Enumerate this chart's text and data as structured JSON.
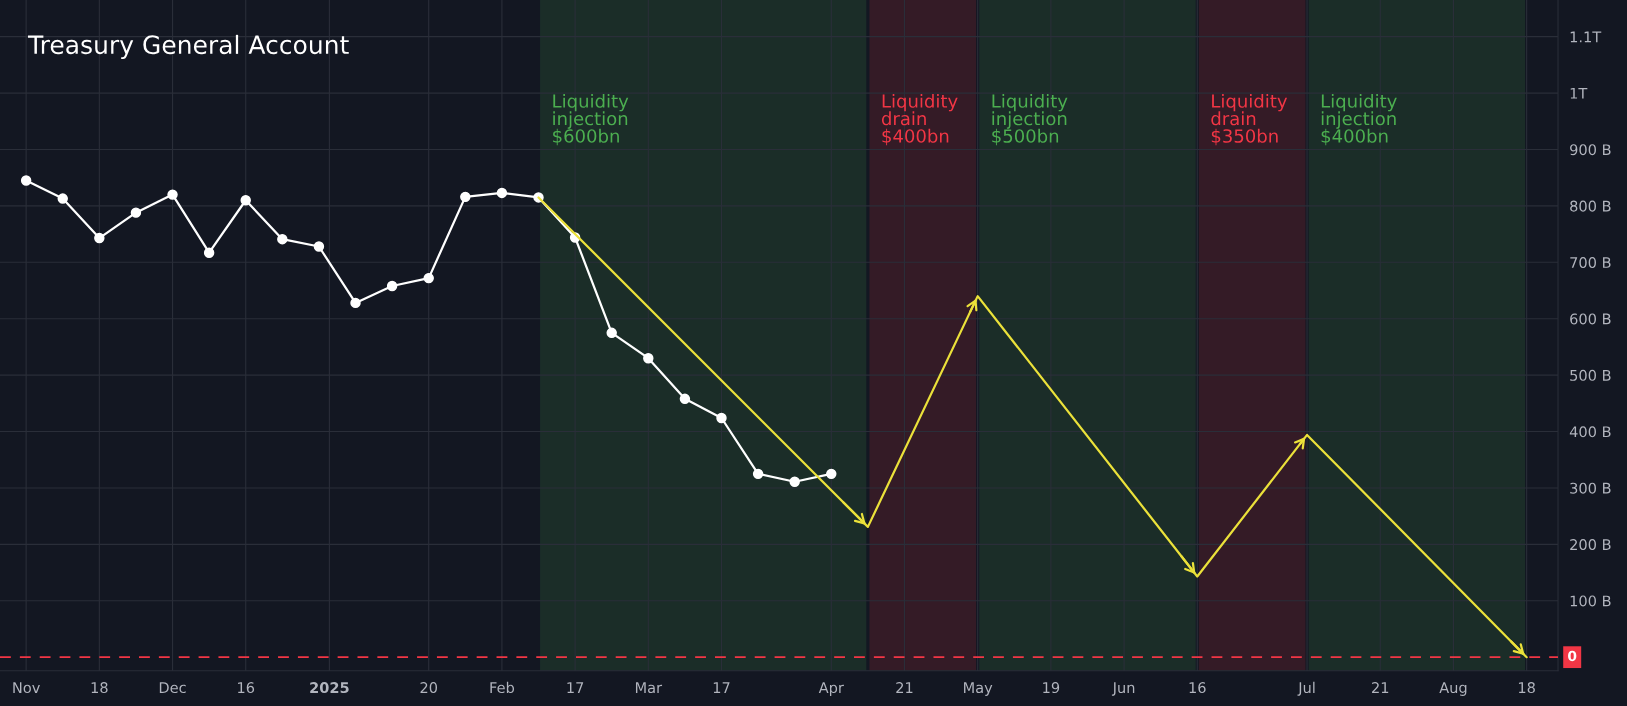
{
  "chart_data": {
    "type": "line",
    "title": "Treasury General Account",
    "series": [
      {
        "color": "#ffffff",
        "marker": "circle",
        "x": [
          "2024-11-04",
          "2024-11-11",
          "2024-11-18",
          "2024-11-25",
          "2024-12-02",
          "2024-12-09",
          "2024-12-16",
          "2024-12-23",
          "2024-12-30",
          "2025-01-06",
          "2025-01-13",
          "2025-01-20",
          "2025-01-27",
          "2025-02-03",
          "2025-02-10",
          "2025-02-17",
          "2025-02-24",
          "2025-03-03",
          "2025-03-10",
          "2025-03-17",
          "2025-03-24",
          "2025-03-31",
          "2025-04-07"
        ],
        "values": [
          845000000000.0,
          813000000000.0,
          743000000000.0,
          788000000000.0,
          820000000000.0,
          717000000000.0,
          810000000000.0,
          741000000000.0,
          728000000000.0,
          628000000000.0,
          658000000000.0,
          672000000000.0,
          816000000000.0,
          823000000000.0,
          815000000000.0,
          744000000000.0,
          575000000000.0,
          530000000000.0,
          458000000000.0,
          424000000000.0,
          325000000000.0,
          311000000000.0,
          325000000000.0
        ]
      },
      {
        "color": "#ebe13a",
        "marker": "none",
        "x": [
          "2025-02-10",
          "2025-04-14",
          "2025-05-05",
          "2025-06-16",
          "2025-07-07",
          "2025-08-18"
        ],
        "values": [
          815000000000.0,
          231000000000.0,
          640000000000.0,
          143000000000.0,
          394000000000.0,
          0
        ]
      }
    ],
    "xlim": [
      "2024-10-30",
      "2025-08-24"
    ],
    "xticks": [
      {
        "value": "2024-11-04",
        "label": "Nov"
      },
      {
        "value": "2024-11-18",
        "label": "18"
      },
      {
        "value": "2024-12-02",
        "label": "Dec"
      },
      {
        "value": "2024-12-16",
        "label": "16"
      },
      {
        "value": "2025-01-01",
        "label": "2025"
      },
      {
        "value": "2025-01-20",
        "label": "20"
      },
      {
        "value": "2025-02-03",
        "label": "Feb"
      },
      {
        "value": "2025-02-17",
        "label": "17"
      },
      {
        "value": "2025-03-03",
        "label": "Mar"
      },
      {
        "value": "2025-03-17",
        "label": "17"
      },
      {
        "value": "2025-04-07",
        "label": "Apr"
      },
      {
        "value": "2025-04-21",
        "label": "21"
      },
      {
        "value": "2025-05-05",
        "label": "May"
      },
      {
        "value": "2025-05-19",
        "label": "19"
      },
      {
        "value": "2025-06-02",
        "label": "Jun"
      },
      {
        "value": "2025-06-16",
        "label": "16"
      },
      {
        "value": "2025-07-07",
        "label": "Jul"
      },
      {
        "value": "2025-07-21",
        "label": "21"
      },
      {
        "value": "2025-08-04",
        "label": "Aug"
      },
      {
        "value": "2025-08-18",
        "label": "18"
      }
    ],
    "ylim": [
      -24000000000.0,
      1165000000000.0
    ],
    "yticks": [
      {
        "value": 100000000000.0,
        "label": "100 B"
      },
      {
        "value": 200000000000.0,
        "label": "200 B"
      },
      {
        "value": 300000000000.0,
        "label": "300 B"
      },
      {
        "value": 400000000000.0,
        "label": "400 B"
      },
      {
        "value": 500000000000.0,
        "label": "500 B"
      },
      {
        "value": 600000000000.0,
        "label": "600 B"
      },
      {
        "value": 700000000000.0,
        "label": "700 B"
      },
      {
        "value": 800000000000.0,
        "label": "800 B"
      },
      {
        "value": 900000000000.0,
        "label": "900 B"
      },
      {
        "value": 1000000000000.0,
        "label": "1T"
      },
      {
        "value": 1100000000000.0,
        "label": "1.1T"
      }
    ],
    "grid": true,
    "legend": false,
    "ref_lines": [
      {
        "axis": "y",
        "value": 0,
        "label": "0",
        "color": "#f23645",
        "line_style": "dashed"
      }
    ],
    "bands": [
      {
        "axis": "x",
        "from": "2025-02-10",
        "to": "2025-04-14",
        "label": "Liquidity\ninjection\n$600bn",
        "color": "#4caf50"
      },
      {
        "axis": "x",
        "from": "2025-04-14",
        "to": "2025-05-05",
        "label": "Liquidity\ndrain\n$400bn",
        "color": "#f23645"
      },
      {
        "axis": "x",
        "from": "2025-05-05",
        "to": "2025-06-16",
        "label": "Liquidity\ninjection\n$500bn",
        "color": "#4caf50"
      },
      {
        "axis": "x",
        "from": "2025-06-16",
        "to": "2025-07-07",
        "label": "Liquidity\ndrain\n$350bn",
        "color": "#f23645"
      },
      {
        "axis": "x",
        "from": "2025-07-07",
        "to": "2025-08-18",
        "label": "Liquidity\ninjection\n$400bn",
        "color": "#4caf50"
      }
    ]
  }
}
